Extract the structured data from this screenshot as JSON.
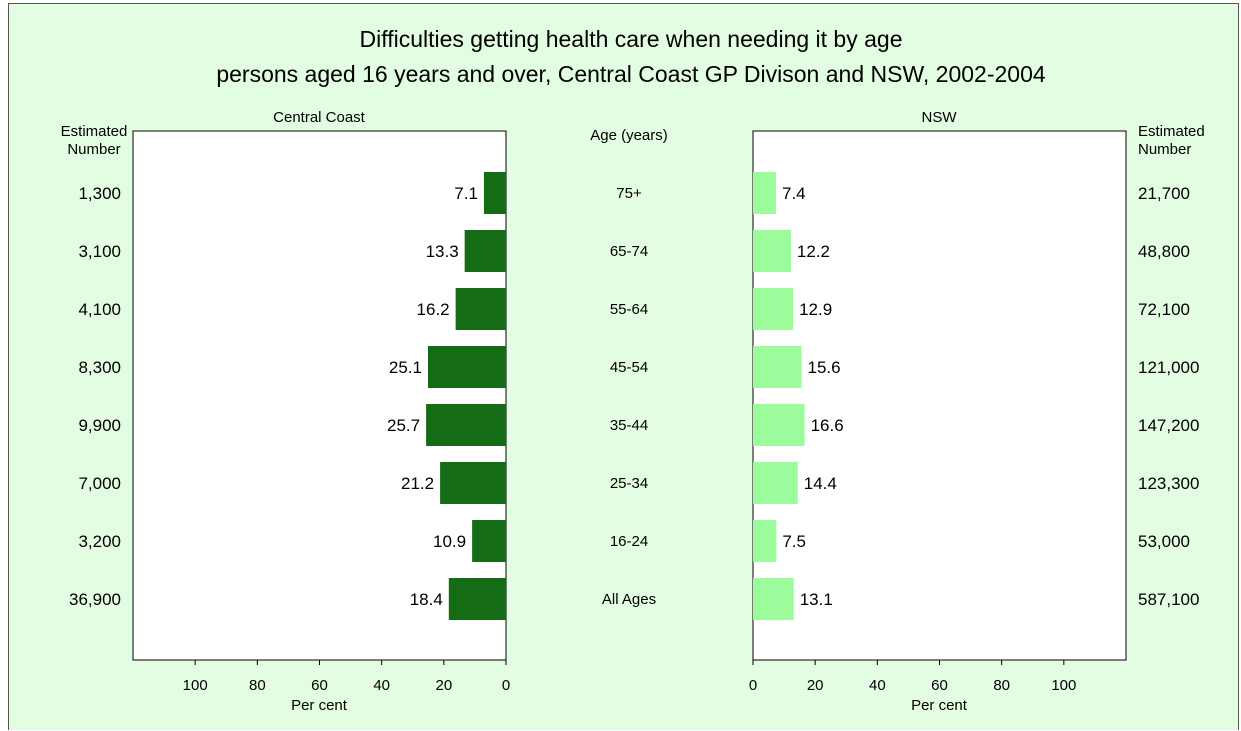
{
  "chart_data": {
    "type": "bar",
    "title_line1": "Difficulties getting health care when needing it by age",
    "title_line2": "persons aged 16 years and over, Central Coast GP Divison and NSW, 2002-2004",
    "center_header": "Age (years)",
    "est_header_line1": "Estimated",
    "est_header_line2": "Number",
    "xlabel": "Per cent",
    "xlim": [
      0,
      120
    ],
    "ticks": [
      0,
      20,
      40,
      60,
      80,
      100
    ],
    "tick_labels": [
      "0",
      "20",
      "40",
      "60",
      "80",
      "100"
    ],
    "categories": [
      "75+",
      "65-74",
      "55-64",
      "45-54",
      "35-44",
      "25-34",
      "16-24",
      "All Ages"
    ],
    "series": [
      {
        "name": "Central Coast",
        "color": "#146c14",
        "values": [
          7.1,
          13.3,
          16.2,
          25.1,
          25.7,
          21.2,
          10.9,
          18.4
        ],
        "value_labels": [
          "7.1",
          "13.3",
          "16.2",
          "25.1",
          "25.7",
          "21.2",
          "10.9",
          "18.4"
        ],
        "estimated": [
          "1,300",
          "3,100",
          "4,100",
          "8,300",
          "9,900",
          "7,000",
          "3,200",
          "36,900"
        ]
      },
      {
        "name": "NSW",
        "color": "#9cfc9c",
        "values": [
          7.4,
          12.2,
          12.9,
          15.6,
          16.6,
          14.4,
          7.5,
          13.1
        ],
        "value_labels": [
          "7.4",
          "12.2",
          "12.9",
          "15.6",
          "16.6",
          "14.4",
          "7.5",
          "13.1"
        ],
        "estimated": [
          "21,700",
          "48,800",
          "72,100",
          "121,000",
          "147,200",
          "123,300",
          "53,000",
          "587,100"
        ]
      }
    ]
  }
}
